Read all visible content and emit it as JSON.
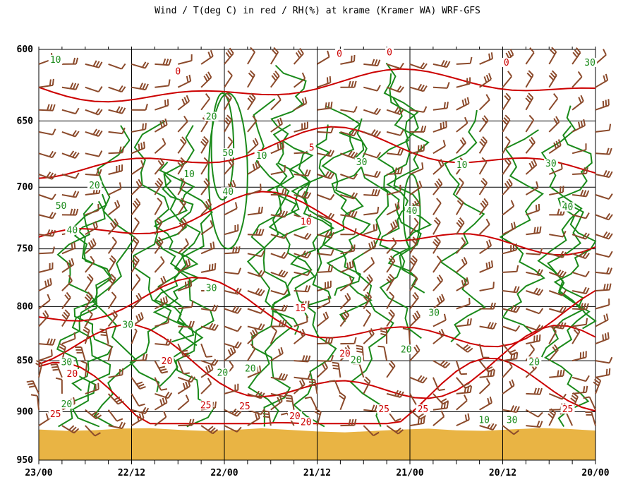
{
  "chart_data": {
    "type": "line",
    "title": "Wind / T(deg C) in red / RH(%) at krame (Kramer WA)  WRF-GFS",
    "y_ticks": [
      "600",
      "650",
      "700",
      "750",
      "800",
      "850",
      "900",
      "950"
    ],
    "x_ticks": [
      "23/00",
      "22/12",
      "22/00",
      "21/12",
      "21/00",
      "20/12",
      "20/00"
    ],
    "ylim": [
      600,
      950
    ],
    "y_scale": "log-pressure",
    "grid": true,
    "series_colors": {
      "temperature": "#cc0000",
      "rh": "#1a8a1a",
      "wind": "#8b4a2b",
      "terrain": "#e9b444"
    },
    "temperature_isotherms": [
      {
        "value": "0",
        "label_positions": [
          [
            0.25,
            616
          ],
          [
            0.54,
            604
          ],
          [
            0.63,
            603
          ],
          [
            0.84,
            610
          ]
        ]
      },
      {
        "value": "5",
        "label_positions": [
          [
            0.49,
            671
          ]
        ]
      },
      {
        "value": "10",
        "label_positions": [
          [
            0.48,
            729
          ]
        ]
      },
      {
        "value": "15",
        "label_positions": [
          [
            0.47,
            803
          ]
        ]
      },
      {
        "value": "20",
        "label_positions": [
          [
            0.06,
            864
          ],
          [
            0.23,
            852
          ],
          [
            0.55,
            845
          ],
          [
            0.89,
            852
          ],
          [
            0.46,
            906
          ],
          [
            0.48,
            912
          ]
        ]
      },
      {
        "value": "25",
        "label_positions": [
          [
            0.03,
            904
          ],
          [
            0.3,
            895
          ],
          [
            0.37,
            896
          ],
          [
            0.62,
            899
          ],
          [
            0.69,
            899
          ],
          [
            0.95,
            899
          ]
        ]
      }
    ],
    "rh_contours": [
      {
        "value": "10",
        "label_positions": [
          [
            0.03,
            608
          ],
          [
            0.27,
            691
          ],
          [
            0.4,
            677
          ],
          [
            0.76,
            684
          ],
          [
            0.8,
            910
          ]
        ]
      },
      {
        "value": "20",
        "label_positions": [
          [
            0.1,
            700
          ],
          [
            0.31,
            648
          ],
          [
            0.05,
            894
          ],
          [
            0.33,
            863
          ],
          [
            0.38,
            859
          ],
          [
            0.57,
            851
          ],
          [
            0.66,
            841
          ],
          [
            0.89,
            853
          ]
        ]
      },
      {
        "value": "30",
        "label_positions": [
          [
            0.99,
            610
          ],
          [
            0.58,
            682
          ],
          [
            0.92,
            683
          ],
          [
            0.16,
            818
          ],
          [
            0.31,
            785
          ],
          [
            0.71,
            807
          ],
          [
            0.05,
            853
          ],
          [
            0.85,
            910
          ]
        ]
      },
      {
        "value": "40",
        "label_positions": [
          [
            0.34,
            705
          ],
          [
            0.67,
            720
          ],
          [
            0.95,
            717
          ],
          [
            0.06,
            736
          ]
        ]
      },
      {
        "value": "50",
        "label_positions": [
          [
            0.34,
            675
          ],
          [
            0.04,
            716
          ]
        ]
      }
    ],
    "terrain_surface_pressure": 918
  }
}
